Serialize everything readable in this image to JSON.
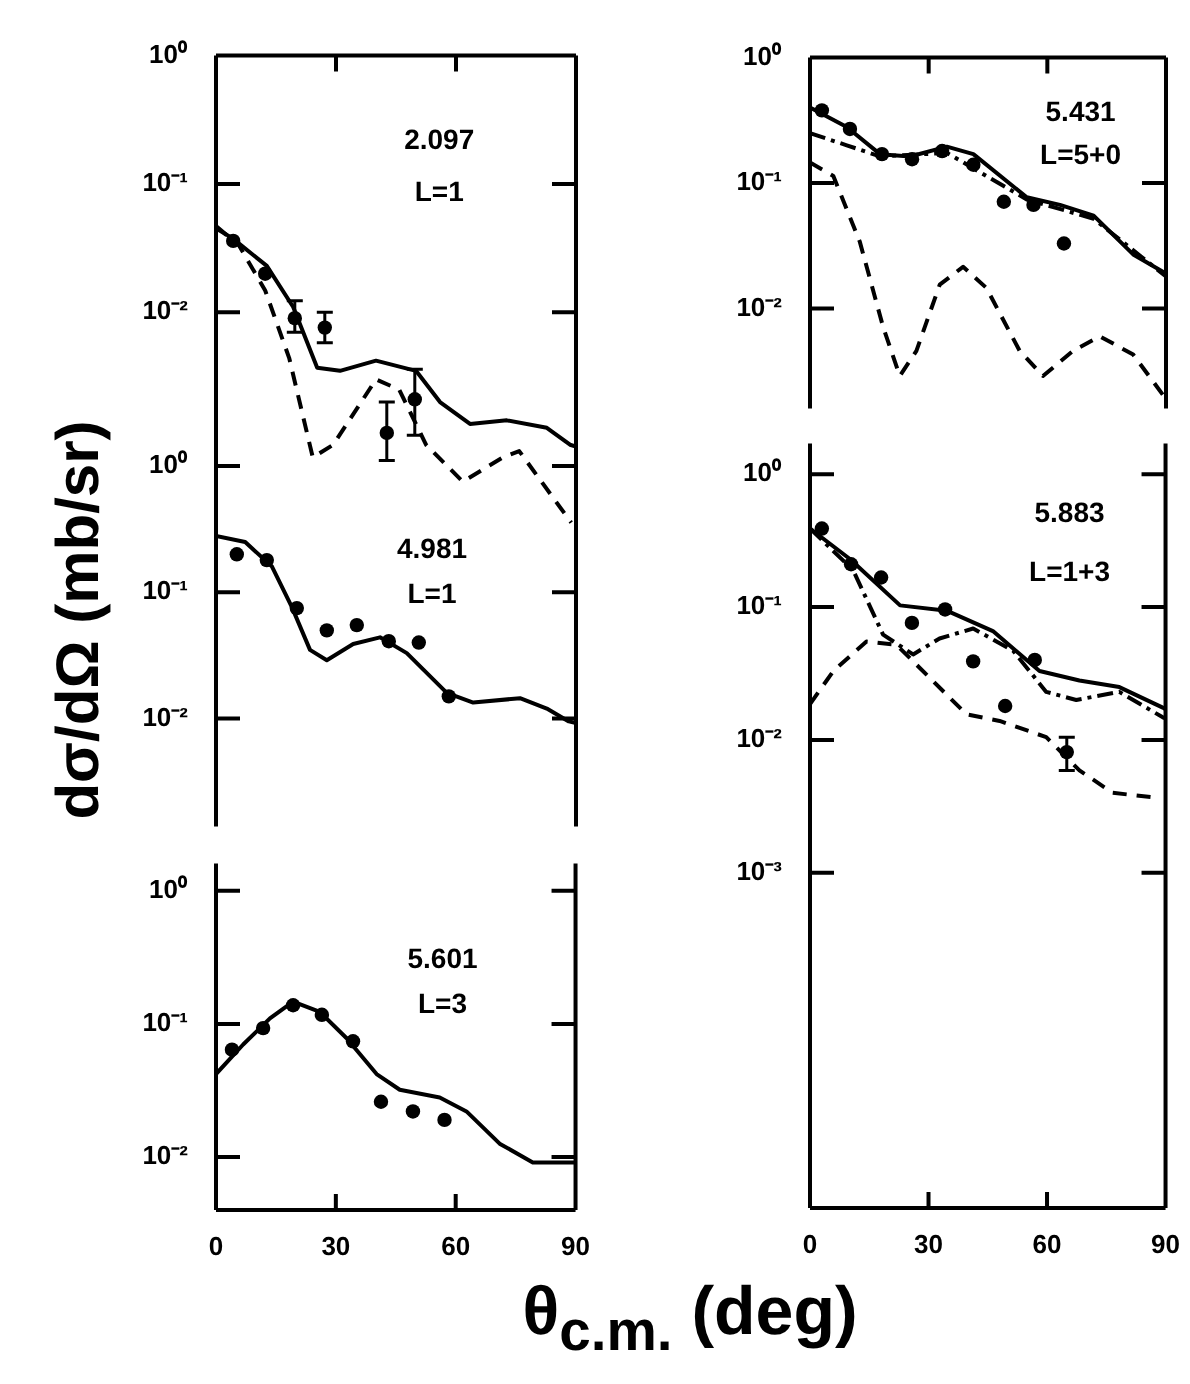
{
  "chart_data": [
    {
      "type": "line",
      "ylabel": "dσ/dΩ  (mb/sr)",
      "xlabel": "θ$_{c.m.}$ (deg)",
      "annotations": [
        "2.097",
        "L=1"
      ],
      "xlim": [
        0,
        90
      ],
      "xticks": [
        0,
        30,
        60,
        90
      ],
      "ylim": [
        0.0002,
        1
      ],
      "yticks": [
        {
          "value": 1,
          "label": "10⁰"
        },
        {
          "value": 0.1,
          "label": "10⁻¹"
        },
        {
          "value": 0.01,
          "label": "10⁻²"
        }
      ],
      "log": "y",
      "tick_labels": "y",
      "series": [
        {
          "type": "scatter",
          "color": "#000000",
          "marker": "circle",
          "x": [
            4.3,
            12.3,
            19.7,
            27.2,
            42.7,
            49.7
          ],
          "values": [
            0.036,
            0.02,
            0.009,
            0.0076,
            0.00115,
            0.0021
          ],
          "errors": [
            null,
            null,
            [
              0.007,
              0.0123
            ],
            [
              0.0058,
              0.01
            ],
            [
              0.0007,
              0.002
            ],
            [
              0.0011,
              0.0036
            ]
          ]
        },
        {
          "color": "#000000",
          "marker": "none",
          "line_style": "solid",
          "x": [
            0,
            4,
            12.7,
            19.3,
            25.3,
            31,
            40,
            50,
            56,
            63.5,
            72.7,
            82.7,
            88.5,
            90
          ],
          "values": [
            0.045,
            0.038,
            0.023,
            0.011,
            0.0037,
            0.0035,
            0.0042,
            0.0035,
            0.002,
            0.00135,
            0.00144,
            0.00126,
            0.00093,
            0.0009
          ]
        },
        {
          "color": "#000000",
          "marker": "none",
          "line_style": "dashed",
          "x": [
            0,
            5.8,
            12.3,
            18.3,
            24.2,
            29.3,
            40,
            45.8,
            52.5,
            61.7,
            71.7,
            75.8,
            88.8
          ],
          "values": [
            0.047,
            0.033,
            0.0148,
            0.0044,
            0.00074,
            0.00093,
            0.003,
            0.0025,
            0.00093,
            0.00048,
            0.00074,
            0.00083,
            0.00023
          ]
        }
      ]
    },
    {
      "type": "line",
      "annotations": [
        "4.981",
        "L=1"
      ],
      "xlim": [
        0,
        90
      ],
      "xticks": [
        0,
        30,
        60,
        90
      ],
      "ylim": [
        0.0014,
        1.4
      ],
      "yticks": [
        {
          "value": 1,
          "label": "10⁰"
        },
        {
          "value": 0.1,
          "label": "10⁻¹"
        },
        {
          "value": 0.01,
          "label": "10⁻²"
        }
      ],
      "log": "y",
      "tick_labels": "y",
      "series": [
        {
          "type": "scatter",
          "color": "#000000",
          "marker": "circle",
          "x": [
            5.2,
            12.7,
            20.2,
            27.7,
            35.2,
            43.2,
            50.7,
            58.2
          ],
          "values": [
            0.2,
            0.18,
            0.075,
            0.05,
            0.055,
            0.041,
            0.04,
            0.015
          ]
        },
        {
          "color": "#000000",
          "marker": "none",
          "line_style": "solid",
          "x": [
            0,
            7.3,
            14,
            19,
            23.5,
            27.7,
            34.3,
            41,
            47.7,
            57.7,
            64.3,
            76,
            82.7,
            88.2,
            90
          ],
          "values": [
            0.28,
            0.25,
            0.16,
            0.076,
            0.035,
            0.029,
            0.039,
            0.044,
            0.033,
            0.016,
            0.0134,
            0.0145,
            0.012,
            0.0095,
            0.0092
          ]
        }
      ]
    },
    {
      "type": "line",
      "annotations": [
        "5.601",
        "L=3"
      ],
      "xlim": [
        0,
        90
      ],
      "xticks": [
        0,
        30,
        60,
        90
      ],
      "ylim": [
        0.004,
        1.6
      ],
      "yticks": [
        {
          "value": 1,
          "label": "10⁰"
        },
        {
          "value": 0.1,
          "label": "10⁻¹"
        },
        {
          "value": 0.01,
          "label": "10⁻²"
        }
      ],
      "log": "y",
      "series": [
        {
          "type": "scatter",
          "color": "#000000",
          "marker": "circle",
          "x": [
            4,
            11.8,
            19.3,
            26.5,
            34.3,
            41.3,
            49.3,
            57.2
          ],
          "values": [
            0.064,
            0.093,
            0.138,
            0.117,
            0.074,
            0.026,
            0.022,
            0.019
          ]
        },
        {
          "color": "#000000",
          "marker": "none",
          "line_style": "solid",
          "x": [
            0,
            6.8,
            13.5,
            19.3,
            26,
            32.7,
            40.2,
            46,
            56,
            62.7,
            71,
            79.3,
            88.2,
            90
          ],
          "values": [
            0.042,
            0.07,
            0.11,
            0.147,
            0.123,
            0.078,
            0.042,
            0.032,
            0.028,
            0.022,
            0.0126,
            0.0091,
            0.0091,
            0.0091
          ]
        }
      ]
    },
    {
      "type": "line",
      "annotations": [
        "5.431",
        "L=5+0"
      ],
      "xlim": [
        0,
        90
      ],
      "xticks": [
        0,
        30,
        60,
        90
      ],
      "ylim": [
        0.0016,
        1
      ],
      "yticks": [
        {
          "value": 1,
          "label": "10⁰"
        },
        {
          "value": 0.1,
          "label": "10⁻¹"
        },
        {
          "value": 0.01,
          "label": "10⁻²"
        }
      ],
      "log": "y",
      "tick_labels": "y",
      "series": [
        {
          "type": "scatter",
          "color": "#000000",
          "marker": "circle",
          "x": [
            3.0,
            10.1,
            18.2,
            25.8,
            33.4,
            41.3,
            49,
            56.5,
            64.2
          ],
          "values": [
            0.38,
            0.27,
            0.17,
            0.155,
            0.18,
            0.14,
            0.071,
            0.067,
            0.033
          ]
        },
        {
          "color": "#000000",
          "marker": "none",
          "line_style": "solid",
          "x": [
            0,
            9.3,
            17.7,
            25.3,
            34.6,
            41.3,
            54.8,
            63.2,
            71.7,
            81.7,
            90
          ],
          "values": [
            0.4,
            0.28,
            0.17,
            0.163,
            0.195,
            0.17,
            0.077,
            0.067,
            0.055,
            0.027,
            0.019
          ]
        },
        {
          "color": "#000000",
          "marker": "none",
          "line_style": "dotted",
          "x": [
            0,
            9.3,
            17.7,
            34.6,
            54.8,
            71.7,
            90
          ],
          "values": [
            0.25,
            0.2,
            0.163,
            0.174,
            0.074,
            0.052,
            0.018
          ]
        },
        {
          "color": "#000000",
          "marker": "none",
          "line_style": "dashed",
          "x": [
            0,
            5.9,
            12.6,
            18.5,
            22.7,
            26.9,
            32.8,
            38.7,
            44.6,
            53,
            58.9,
            66.5,
            73.3,
            81.7,
            90
          ],
          "values": [
            0.146,
            0.114,
            0.034,
            0.0071,
            0.0029,
            0.0046,
            0.0155,
            0.0215,
            0.0146,
            0.0046,
            0.0029,
            0.0046,
            0.006,
            0.0043,
            0.0019
          ]
        }
      ]
    },
    {
      "type": "line",
      "annotations": [
        "5.883",
        "L=1+3"
      ],
      "xlim": [
        0,
        90
      ],
      "xticks": [
        0,
        30,
        60,
        90
      ],
      "ylim": [
        3e-06,
        1.7
      ],
      "yticks": [
        {
          "value": 1,
          "label": "10⁰"
        },
        {
          "value": 0.1,
          "label": "10⁻¹"
        },
        {
          "value": 0.01,
          "label": "10⁻²"
        },
        {
          "value": 0.001,
          "label": "10⁻³"
        }
      ],
      "log": "y",
      "series": [
        {
          "type": "scatter",
          "color": "#000000",
          "marker": "circle",
          "x": [
            3.0,
            10.4,
            18.0,
            25.8,
            34.2,
            41.3,
            49.4,
            56.9,
            65
          ],
          "values": [
            0.39,
            0.21,
            0.167,
            0.076,
            0.096,
            0.039,
            0.018,
            0.04,
            0.0081
          ],
          "errors": [
            null,
            null,
            null,
            null,
            null,
            null,
            null,
            null,
            [
              0.0059,
              0.0105
            ]
          ]
        },
        {
          "color": "#000000",
          "marker": "none",
          "line_style": "solid",
          "x": [
            0,
            10.1,
            22.8,
            34.6,
            46.3,
            58.1,
            68.2,
            78.3,
            89.3,
            90
          ],
          "values": [
            0.39,
            0.23,
            0.103,
            0.094,
            0.066,
            0.033,
            0.028,
            0.025,
            0.0175,
            0.017
          ]
        },
        {
          "color": "#000000",
          "marker": "none",
          "line_style": "dotted",
          "x": [
            0,
            10.9,
            18.5,
            26.1,
            32.8,
            41.3,
            51.4,
            59.8,
            67.4,
            78.3,
            89.3,
            90
          ],
          "values": [
            0.39,
            0.19,
            0.062,
            0.044,
            0.058,
            0.069,
            0.047,
            0.023,
            0.02,
            0.023,
            0.0148,
            0.0145
          ]
        },
        {
          "color": "#000000",
          "marker": "none",
          "line_style": "dashed",
          "x": [
            0,
            5.9,
            14.3,
            21.9,
            29.5,
            39.6,
            48,
            59.8,
            68.2,
            76.6,
            86.8
          ],
          "values": [
            0.0186,
            0.033,
            0.055,
            0.052,
            0.031,
            0.0156,
            0.0139,
            0.0105,
            0.0059,
            0.004,
            0.0037
          ]
        }
      ]
    }
  ]
}
